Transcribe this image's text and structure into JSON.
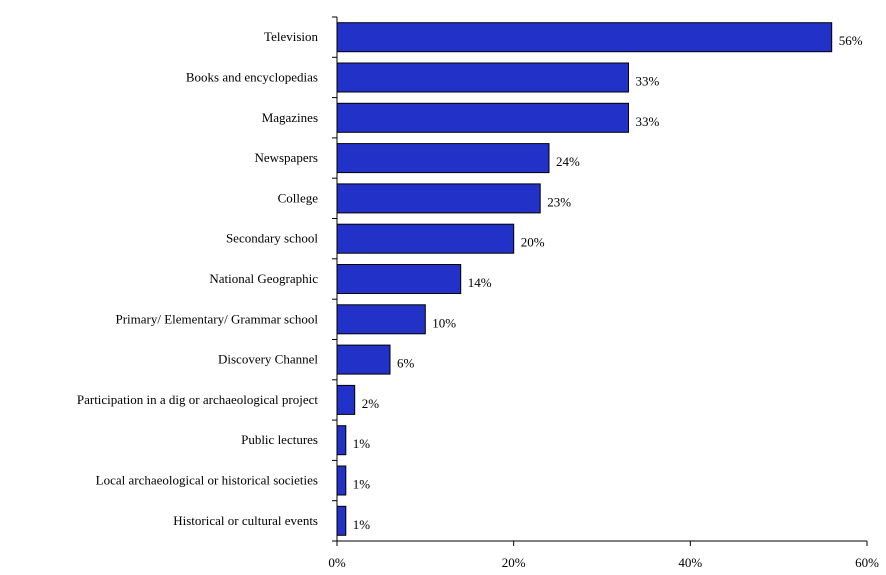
{
  "chart_data": {
    "type": "bar",
    "orientation": "horizontal",
    "title": "",
    "xlabel": "",
    "ylabel": "",
    "categories": [
      "Television",
      "Books and encyclopedias",
      "Magazines",
      "Newspapers",
      "College",
      "Secondary school",
      "National Geographic",
      "Primary/ Elementary/ Grammar school",
      "Discovery Channel",
      "Participation in a dig or archaeological project",
      "Public lectures",
      "Local archaeological or historical societies",
      "Historical or cultural events"
    ],
    "values": [
      56,
      33,
      33,
      24,
      23,
      20,
      14,
      10,
      6,
      2,
      1,
      1,
      1
    ],
    "value_labels": [
      "56%",
      "33%",
      "33%",
      "24%",
      "23%",
      "20%",
      "14%",
      "10%",
      "6%",
      "2%",
      "1%",
      "1%",
      "1%"
    ],
    "xlim": [
      0,
      60
    ],
    "xticks": [
      0,
      20,
      40,
      60
    ],
    "xtick_labels": [
      "0%",
      "20%",
      "40%",
      "60%"
    ],
    "grid": false,
    "legend": "none",
    "bar_color": "#2232c8",
    "bar_edge_color": "#000000"
  }
}
